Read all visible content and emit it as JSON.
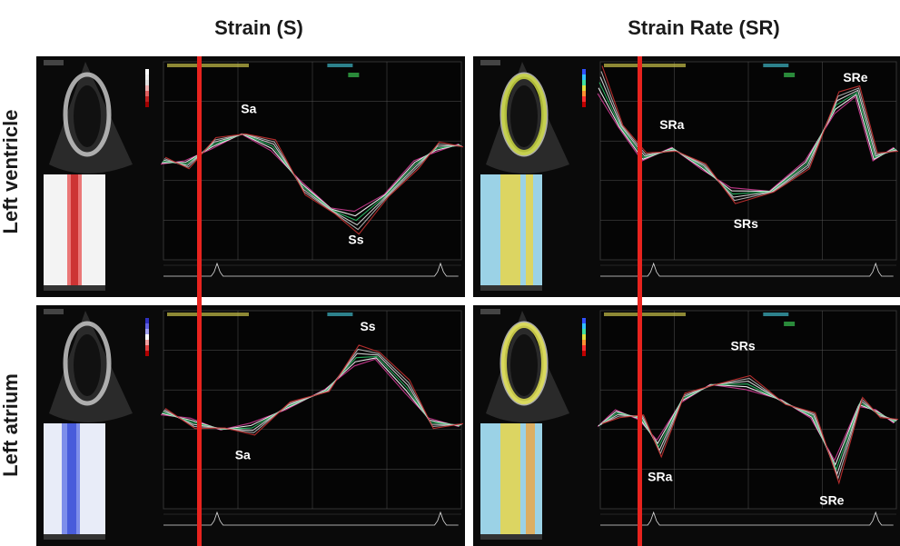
{
  "columns": {
    "strain": "Strain (S)",
    "strain_rate": "Strain Rate (SR)"
  },
  "rows": {
    "lv": "Left ventricle",
    "la": "Left atrium"
  },
  "panels": {
    "lv_strain": {
      "peak_labels": {
        "a": "Sa",
        "s": "Ss"
      }
    },
    "lv_sr": {
      "peak_labels": {
        "a": "SRa",
        "s": "SRs",
        "e": "SRe"
      }
    },
    "la_strain": {
      "peak_labels": {
        "a": "Sa",
        "s": "Ss"
      }
    },
    "la_sr": {
      "peak_labels": {
        "a": "SRa",
        "s": "SRs",
        "e": "SRe"
      }
    }
  },
  "colors": {
    "marker_line": "#e8231e",
    "panel_bg": "#0a0a0a",
    "grid": "#555555",
    "traces": [
      "#d23c96",
      "#ffffff",
      "#2ec46a",
      "#e0e0e0",
      "#bbbbbb",
      "#c83232"
    ]
  },
  "icons": {
    "echo": "ultrasound-sector-image",
    "colorbar": "color-scale-bar",
    "mmode": "m-mode-strip"
  }
}
